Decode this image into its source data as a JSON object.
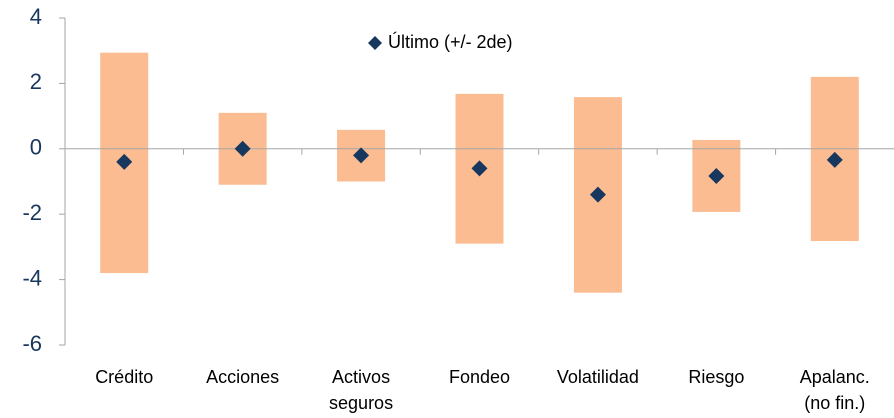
{
  "chart_data": {
    "type": "range_dot",
    "categories": [
      "Crédito",
      "Acciones",
      "Activos\nseguros",
      "Fondeo",
      "Volatilidad",
      "Riesgo",
      "Apalanc.\n(no fin.)"
    ],
    "ranges": {
      "color": "#fbbc92",
      "low": [
        -3.8,
        -1.1,
        -1.0,
        -2.9,
        -4.4,
        -1.93,
        -2.82
      ],
      "high": [
        2.94,
        1.1,
        0.58,
        1.68,
        1.58,
        0.27,
        2.2
      ]
    },
    "series": [
      {
        "name": "Último (+/- 2de)",
        "color": "#17375e",
        "values": [
          -0.4,
          0,
          -0.2,
          -0.6,
          -1.4,
          -0.83,
          -0.34
        ]
      }
    ],
    "ylim": [
      -6,
      4
    ],
    "yticks": [
      -6,
      -4,
      -2,
      0,
      2,
      4
    ],
    "legend": "top"
  }
}
